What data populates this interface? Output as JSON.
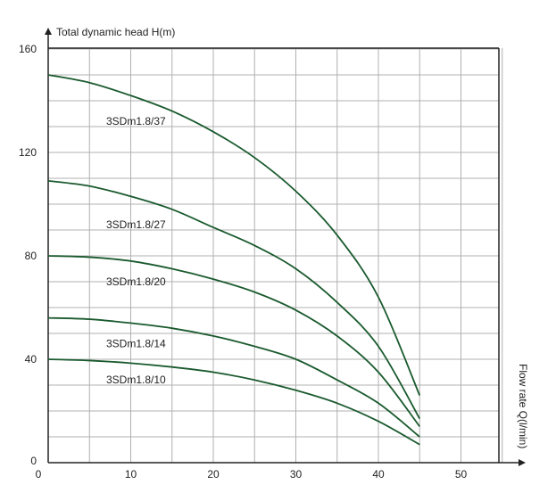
{
  "chart_data": {
    "type": "line",
    "title": "",
    "ylabel": "Total dynamic head H(m)",
    "xlabel": "Flow rate Q(l/min)",
    "xlim": [
      0,
      55
    ],
    "ylim": [
      0,
      160
    ],
    "x_ticks": [
      0,
      10,
      20,
      30,
      40,
      50
    ],
    "y_ticks": [
      0,
      40,
      80,
      120,
      160
    ],
    "x_minor_step": 5,
    "y_minor_step": 10,
    "grid": true,
    "legend": "inline labels",
    "colors": {
      "curve": "#1a5a2e",
      "grid": "#b0b0b0",
      "axis": "#222222"
    },
    "series": [
      {
        "name": "3SDm1.8/37",
        "x": [
          0,
          5,
          10,
          15,
          20,
          25,
          30,
          35,
          40,
          45
        ],
        "y": [
          150,
          147,
          142,
          136,
          128,
          118,
          105,
          88,
          64,
          26
        ]
      },
      {
        "name": "3SDm1.8/27",
        "x": [
          0,
          5,
          10,
          15,
          20,
          25,
          30,
          35,
          40,
          45
        ],
        "y": [
          109,
          107,
          103,
          98,
          91,
          84,
          75,
          62,
          45,
          17
        ]
      },
      {
        "name": "3SDm1.8/20",
        "x": [
          0,
          5,
          10,
          15,
          20,
          25,
          30,
          35,
          40,
          45
        ],
        "y": [
          80,
          79.5,
          78,
          75,
          71,
          66,
          59,
          49,
          35,
          14
        ]
      },
      {
        "name": "3SDm1.8/14",
        "x": [
          0,
          5,
          10,
          15,
          20,
          25,
          30,
          35,
          40,
          45
        ],
        "y": [
          56,
          55.5,
          54,
          52,
          49,
          45,
          40,
          32,
          23,
          10
        ]
      },
      {
        "name": "3SDm1.8/10",
        "x": [
          0,
          5,
          10,
          15,
          20,
          25,
          30,
          35,
          40,
          45
        ],
        "y": [
          40,
          39.5,
          38.5,
          37,
          35,
          32,
          28,
          23,
          16,
          7
        ]
      }
    ],
    "series_labels": [
      {
        "text": "3SDm1.8/37",
        "x": 8,
        "y": 132
      },
      {
        "text": "3SDm1.8/27",
        "x": 8,
        "y": 92
      },
      {
        "text": "3SDm1.8/20",
        "x": 8,
        "y": 70
      },
      {
        "text": "3SDm1.8/14",
        "x": 8,
        "y": 46
      },
      {
        "text": "3SDm1.8/10",
        "x": 8,
        "y": 32
      }
    ]
  }
}
